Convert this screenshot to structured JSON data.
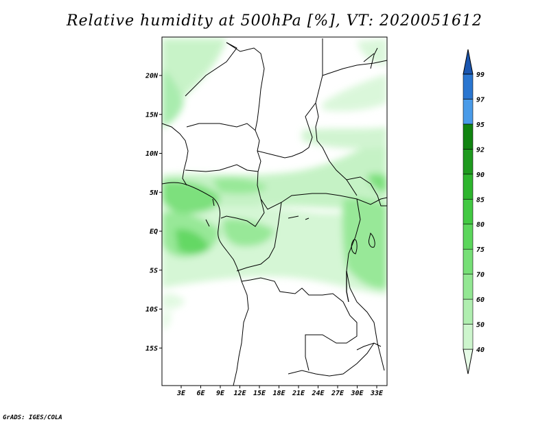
{
  "title": "Relative humidity at 500hPa [%], VT: 2020051612",
  "credit": "GrADS: IGES/COLA",
  "map": {
    "lat_labels": [
      "20N",
      "15N",
      "10N",
      "5N",
      "EQ",
      "5S",
      "10S",
      "15S"
    ],
    "lon_labels": [
      "3E",
      "6E",
      "9E",
      "12E",
      "15E",
      "18E",
      "21E",
      "24E",
      "27E",
      "30E",
      "33E"
    ]
  },
  "colorbar": {
    "levels": [
      "40",
      "50",
      "60",
      "70",
      "75",
      "80",
      "85",
      "90",
      "92",
      "95",
      "97",
      "99"
    ],
    "colors": [
      "#e6fbe6",
      "#cdf5cd",
      "#b0eeb0",
      "#93e793",
      "#77df77",
      "#5cd65c",
      "#43c943",
      "#2eb52e",
      "#1f9a1f",
      "#118411",
      "#4a9be8",
      "#2a76d0",
      "#1a56b0"
    ]
  }
}
